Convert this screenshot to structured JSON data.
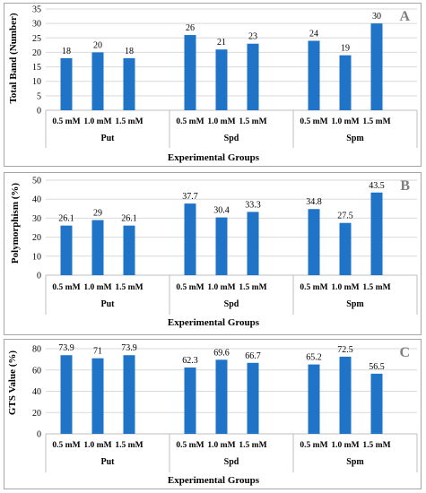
{
  "colors": {
    "bar": "#1f74c8",
    "grid": "#d9d9d9",
    "axis": "#bfbfbf",
    "letter": "#7f7f7f"
  },
  "chart_data": [
    {
      "type": "bar",
      "panel_letter": "A",
      "ylabel": "Total Band (Number)",
      "xlabel": "Experimental Groups",
      "ylim": [
        0,
        35
      ],
      "yticks": [
        0,
        5,
        10,
        15,
        20,
        25,
        30,
        35
      ],
      "groups": [
        "Put",
        "Spd",
        "Spm"
      ],
      "categories": [
        "0.5 mM",
        "1.0 mM",
        "1.5 mM"
      ],
      "values": [
        [
          18,
          20,
          18
        ],
        [
          26,
          21,
          23
        ],
        [
          24,
          19,
          30
        ]
      ],
      "labels": [
        [
          "18",
          "20",
          "18"
        ],
        [
          "26",
          "21",
          "23"
        ],
        [
          "24",
          "19",
          "30"
        ]
      ],
      "grid": true
    },
    {
      "type": "bar",
      "panel_letter": "B",
      "ylabel": "Polymorphism (%)",
      "xlabel": "Experimental Groups",
      "ylim": [
        0,
        50
      ],
      "yticks": [
        0,
        10,
        20,
        30,
        40,
        50
      ],
      "groups": [
        "Put",
        "Spd",
        "Spm"
      ],
      "categories": [
        "0.5 mM",
        "1.0 mM",
        "1.5 mM"
      ],
      "values": [
        [
          26.1,
          29,
          26.1
        ],
        [
          37.7,
          30.4,
          33.3
        ],
        [
          34.8,
          27.5,
          43.5
        ]
      ],
      "labels": [
        [
          "26.1",
          "29",
          "26.1"
        ],
        [
          "37.7",
          "30.4",
          "33.3"
        ],
        [
          "34.8",
          "27.5",
          "43.5"
        ]
      ],
      "grid": true
    },
    {
      "type": "bar",
      "panel_letter": "C",
      "ylabel": "GTS Value (%)",
      "xlabel": "Experimental Groups",
      "ylim": [
        0,
        80
      ],
      "yticks": [
        0,
        20,
        40,
        60,
        80
      ],
      "groups": [
        "Put",
        "Spd",
        "Spm"
      ],
      "categories": [
        "0.5 mM",
        "1.0 mM",
        "1.5 mM"
      ],
      "values": [
        [
          73.9,
          71,
          73.9
        ],
        [
          62.3,
          69.6,
          66.7
        ],
        [
          65.2,
          72.5,
          56.5
        ]
      ],
      "labels": [
        [
          "73.9",
          "71",
          "73.9"
        ],
        [
          "62.3",
          "69.6",
          "66.7"
        ],
        [
          "65.2",
          "72.5",
          "56.5"
        ]
      ],
      "grid": true
    }
  ]
}
